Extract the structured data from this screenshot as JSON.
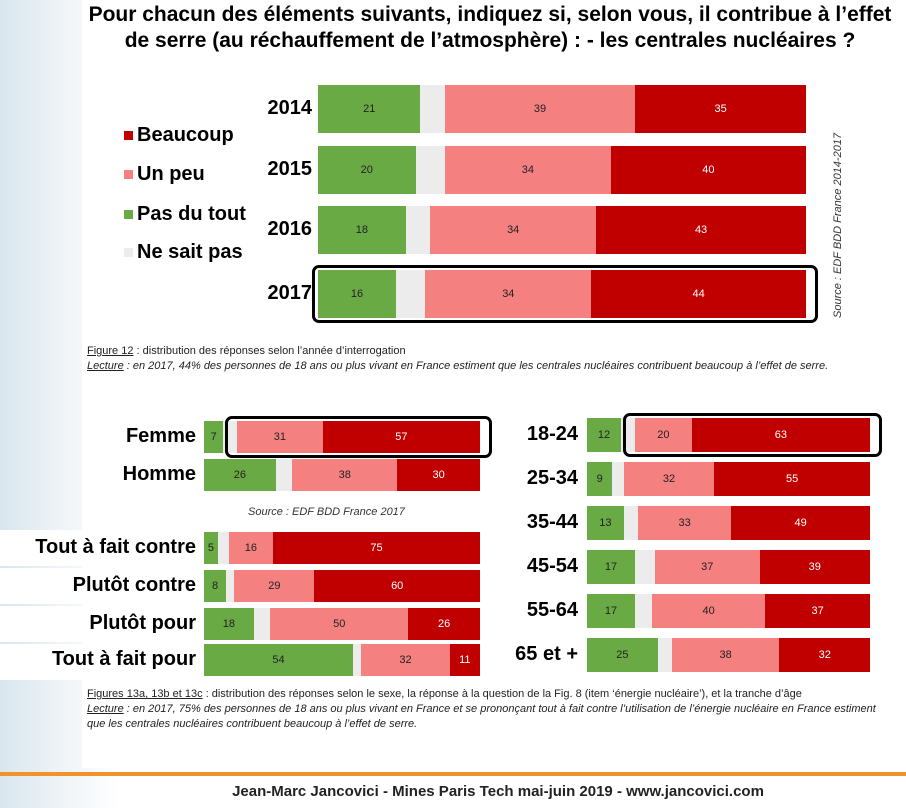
{
  "title": "Pour chacun des éléments suivants, indiquez si, selon vous, il contribue à l’effet de serre (au réchauffement de l’atmosphère) : - les centrales nucléaires ?",
  "colors": {
    "pas_du_tout": "#6aaa44",
    "ne_sait_pas": "#ececec",
    "un_peu": "#f58080",
    "beaucoup": "#c00000"
  },
  "legend": [
    {
      "key": "beaucoup",
      "label": "Beaucoup"
    },
    {
      "key": "un_peu",
      "label": "Un peu"
    },
    {
      "key": "pas_du_tout",
      "label": "Pas du tout"
    },
    {
      "key": "ne_sait_pas",
      "label": "Ne sait pas"
    }
  ],
  "source_vertical": "Source : EDF BDD France 2014-2017",
  "caption1": {
    "fig": "Figure 12",
    "fig_text": " : distribution des réponses selon l’année d’interrogation",
    "lecture": "Lecture",
    "lecture_text": " : en 2017, 44% des personnes de 18 ans ou plus vivant en France estiment que les centrales nucléaires contribuent beaucoup à l’effet de serre."
  },
  "source_small": "Source : EDF BDD France 2017",
  "caption2": {
    "fig": "Figures 13a, 13b et 13c",
    "fig_text": " : distribution des réponses selon le sexe, la réponse à la question de la Fig. 8 (item ‘énergie nucléaire’), et la tranche d’âge",
    "lecture": "Lecture",
    "lecture_text": " : en 2017, 75% des personnes de 18 ans ou plus vivant en France et se prononçant tout à fait contre l’utilisation de l’énergie nucléaire en France estiment que les centrales nucléaires contribuent beaucoup à l’effet de serre."
  },
  "footer": "Jean-Marc Jancovici - Mines Paris Tech mai-juin 2019 - www.jancovici.com",
  "chart_data": [
    {
      "type": "bar",
      "stacked": true,
      "orientation": "horizontal",
      "categories": [
        "2014",
        "2015",
        "2016",
        "2017"
      ],
      "series": [
        {
          "name": "Pas du tout",
          "values": [
            21,
            20,
            18,
            16
          ]
        },
        {
          "name": "Ne sait pas",
          "values": [
            5,
            6,
            5,
            6
          ]
        },
        {
          "name": "Un peu",
          "values": [
            39,
            34,
            34,
            34
          ]
        },
        {
          "name": "Beaucoup",
          "values": [
            35,
            40,
            43,
            44
          ]
        }
      ],
      "highlight": [
        "2017"
      ]
    },
    {
      "type": "bar",
      "stacked": true,
      "orientation": "horizontal",
      "categories": [
        "Femme",
        "Homme"
      ],
      "series": [
        {
          "name": "Pas du tout",
          "values": [
            7,
            26
          ]
        },
        {
          "name": "Ne sait pas",
          "values": [
            5,
            6
          ]
        },
        {
          "name": "Un peu",
          "values": [
            31,
            38
          ]
        },
        {
          "name": "Beaucoup",
          "values": [
            57,
            30
          ]
        }
      ],
      "highlight": [
        "Femme"
      ]
    },
    {
      "type": "bar",
      "stacked": true,
      "orientation": "horizontal",
      "categories": [
        "Tout à fait contre",
        "Plutôt contre",
        "Plutôt pour",
        "Tout à fait pour"
      ],
      "series": [
        {
          "name": "Pas du tout",
          "values": [
            5,
            8,
            18,
            54
          ]
        },
        {
          "name": "Ne sait pas",
          "values": [
            4,
            3,
            6,
            3
          ]
        },
        {
          "name": "Un peu",
          "values": [
            16,
            29,
            50,
            32
          ]
        },
        {
          "name": "Beaucoup",
          "values": [
            75,
            60,
            26,
            11
          ]
        }
      ]
    },
    {
      "type": "bar",
      "stacked": true,
      "orientation": "horizontal",
      "categories": [
        "18-24",
        "25-34",
        "35-44",
        "45-54",
        "55-64",
        "65 et +"
      ],
      "series": [
        {
          "name": "Pas du tout",
          "values": [
            12,
            9,
            13,
            17,
            17,
            25
          ]
        },
        {
          "name": "Ne sait pas",
          "values": [
            5,
            4,
            5,
            7,
            6,
            5
          ]
        },
        {
          "name": "Un peu",
          "values": [
            20,
            32,
            33,
            37,
            40,
            38
          ]
        },
        {
          "name": "Beaucoup",
          "values": [
            63,
            55,
            49,
            39,
            37,
            32
          ]
        }
      ],
      "highlight": [
        "18-24"
      ]
    }
  ]
}
